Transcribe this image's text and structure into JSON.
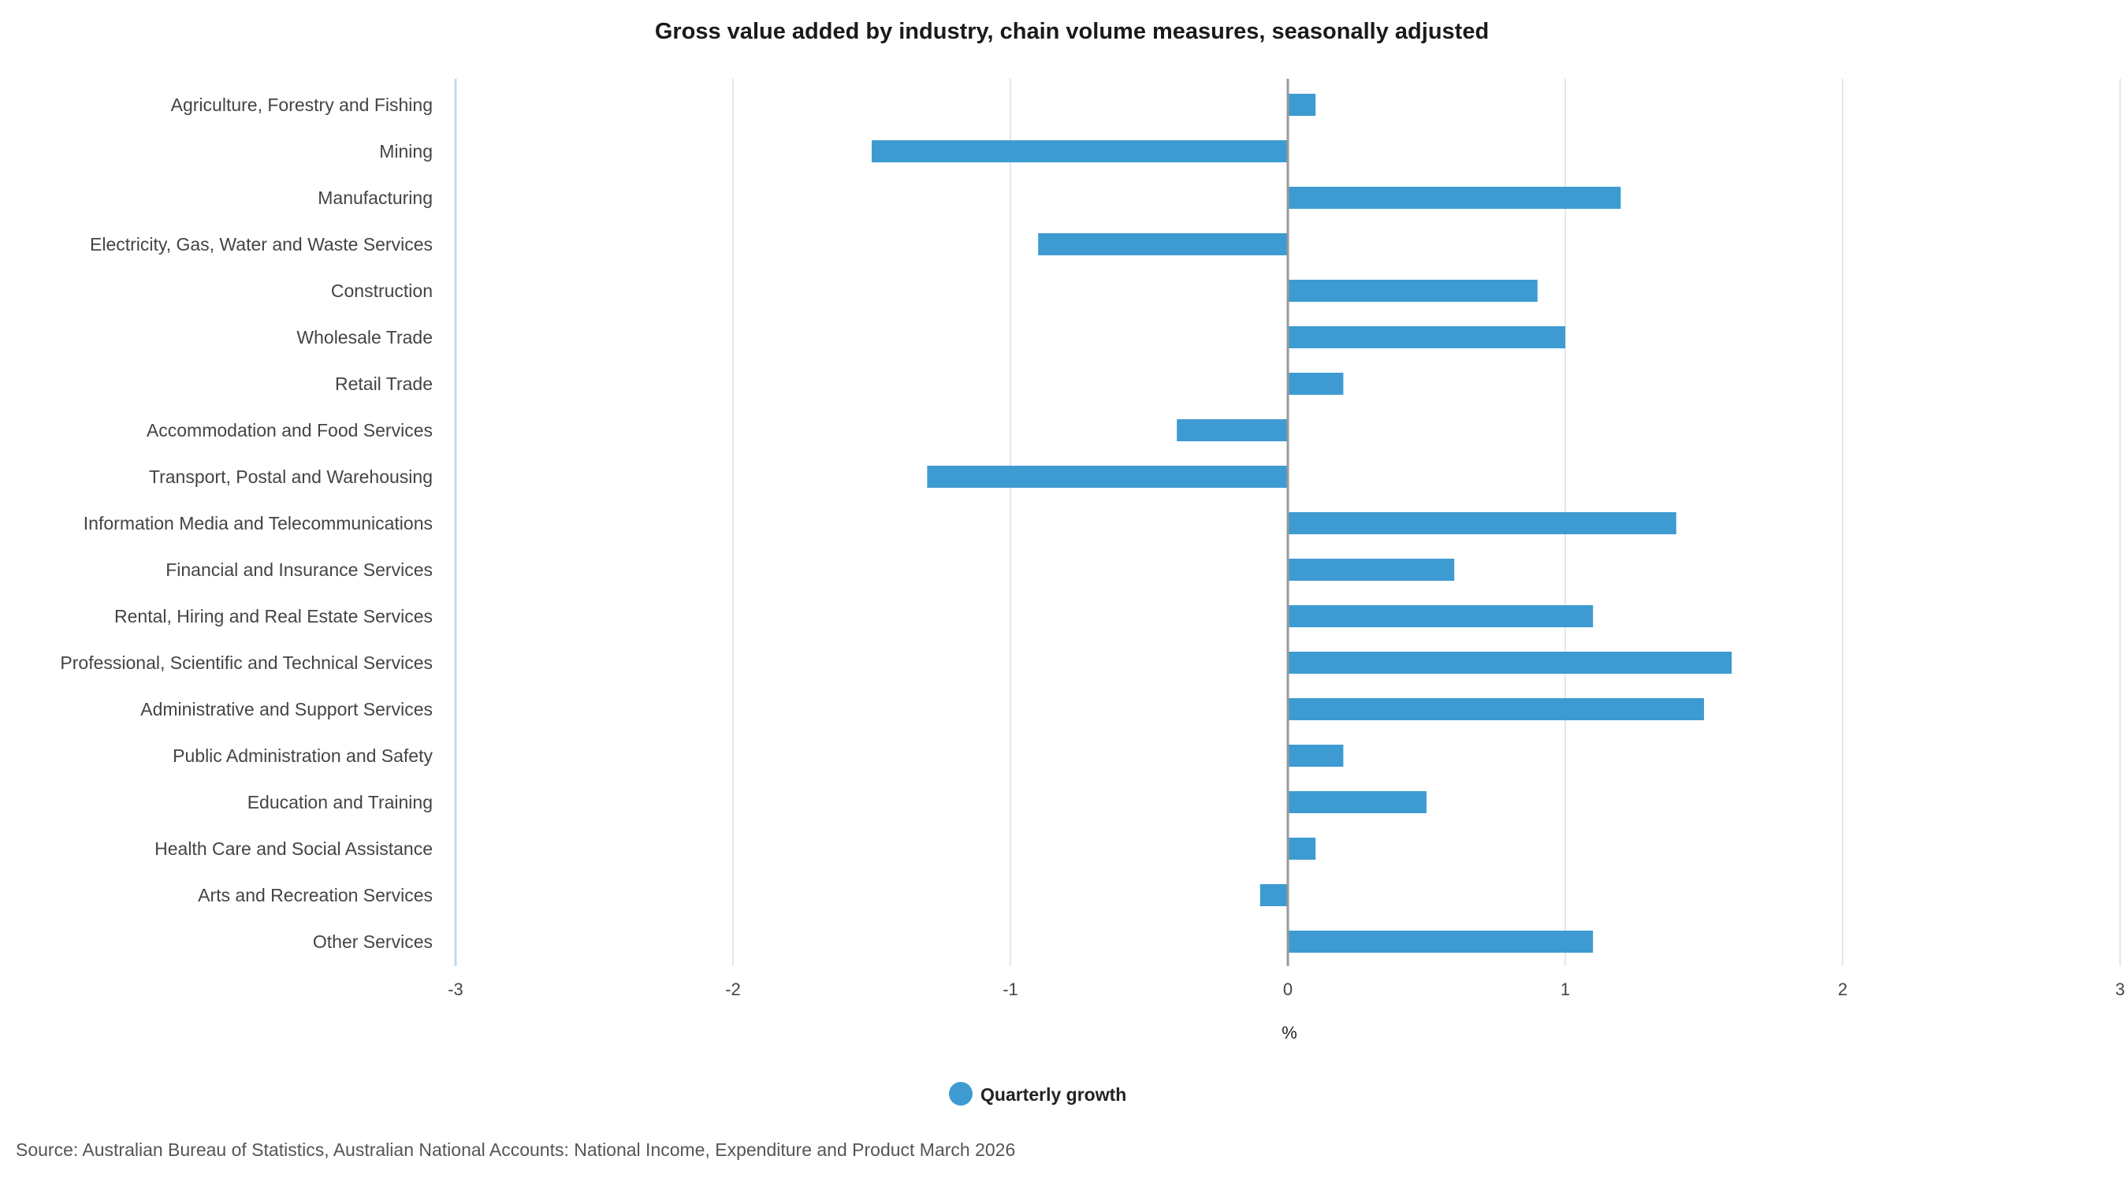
{
  "chart_data": {
    "type": "bar",
    "orientation": "horizontal",
    "title": "Gross value added by industry, chain volume measures, seasonally adjusted",
    "xlabel": "%",
    "ylabel": "",
    "xlim": [
      -3,
      3
    ],
    "xticks": [
      "-3",
      "-2",
      "-1",
      "0",
      "1",
      "2",
      "3"
    ],
    "grid": true,
    "legend_position": "bottom",
    "categories": [
      "Agriculture, Forestry and Fishing",
      "Mining",
      "Manufacturing",
      "Electricity, Gas, Water and Waste Services",
      "Construction",
      "Wholesale Trade",
      "Retail Trade",
      "Accommodation and Food Services",
      "Transport, Postal and Warehousing",
      "Information Media and Telecommunications",
      "Financial and Insurance Services",
      "Rental, Hiring and Real Estate Services",
      "Professional, Scientific and Technical Services",
      "Administrative and Support Services",
      "Public Administration and Safety",
      "Education and Training",
      "Health Care and Social Assistance",
      "Arts and Recreation Services",
      "Other Services"
    ],
    "series": [
      {
        "name": "Quarterly growth",
        "color": "#3d9bd2",
        "values": [
          0.1,
          -1.5,
          1.2,
          -0.9,
          0.9,
          1.0,
          0.2,
          -0.4,
          -1.3,
          1.4,
          0.6,
          1.1,
          1.6,
          1.5,
          0.2,
          0.5,
          0.1,
          -0.1,
          1.1
        ]
      }
    ]
  },
  "source": "Source: Australian Bureau of Statistics, Australian National Accounts: National Income, Expenditure and Product March 2026",
  "colors": {
    "bar": "#3d9bd2",
    "grid": "#e3e6ea",
    "zero_line": "#999999",
    "left_axis": "#c5d8ee"
  }
}
